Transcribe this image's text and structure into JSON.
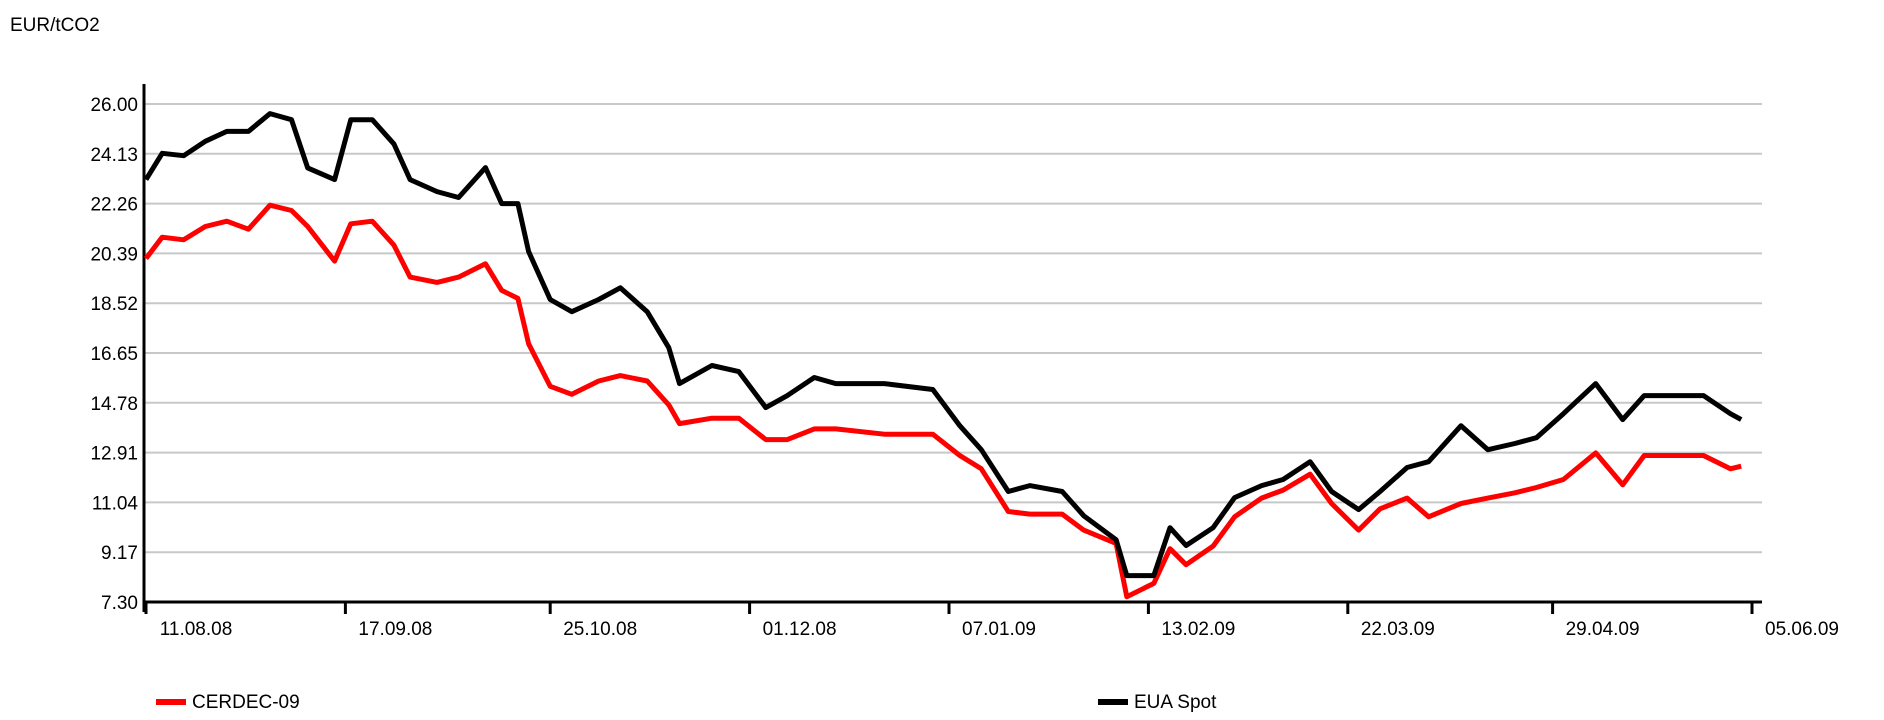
{
  "chart_data": {
    "type": "line",
    "title": "EUR/tCO2",
    "x": [
      "11.08.08",
      "14.08.08",
      "18.08.08",
      "22.08.08",
      "26.08.08",
      "30.08.08",
      "03.09.08",
      "07.09.08",
      "10.09.08",
      "15.09.08",
      "18.09.08",
      "22.09.08",
      "26.09.08",
      "29.09.08",
      "04.10.08",
      "08.10.08",
      "13.10.08",
      "16.10.08",
      "19.10.08",
      "21.10.08",
      "25.10.08",
      "29.10.08",
      "03.11.08",
      "07.11.08",
      "12.11.08",
      "16.11.08",
      "18.11.08",
      "24.11.08",
      "29.11.08",
      "04.12.08",
      "08.12.08",
      "13.12.08",
      "17.12.08",
      "26.12.08",
      "04.01.09",
      "09.01.09",
      "13.01.09",
      "18.01.09",
      "22.01.09",
      "28.01.09",
      "01.02.09",
      "07.02.09",
      "09.02.09",
      "14.02.09",
      "17.02.09",
      "20.02.09",
      "25.02.09",
      "01.03.09",
      "06.03.09",
      "10.03.09",
      "15.03.09",
      "19.03.09",
      "24.03.09",
      "28.03.09",
      "02.04.09",
      "06.04.09",
      "12.04.09",
      "17.04.09",
      "22.04.09",
      "26.04.09",
      "01.05.09",
      "07.05.09",
      "12.05.09",
      "16.05.09",
      "23.05.09",
      "27.05.09",
      "01.06.09",
      "03.06.09"
    ],
    "series": [
      {
        "name": "CERDEC-09",
        "color": "#ff0000",
        "values": [
          20.2,
          21.0,
          20.9,
          21.4,
          21.6,
          21.3,
          22.2,
          22.0,
          21.4,
          20.1,
          21.5,
          21.6,
          20.7,
          19.5,
          19.3,
          19.5,
          20.0,
          19.0,
          18.7,
          17.0,
          15.4,
          15.1,
          15.6,
          15.8,
          15.6,
          14.7,
          14.0,
          14.2,
          14.2,
          13.4,
          13.4,
          13.8,
          13.8,
          13.6,
          13.6,
          12.8,
          12.3,
          10.7,
          10.6,
          10.6,
          10.0,
          9.5,
          7.5,
          8.0,
          9.3,
          8.7,
          9.4,
          10.5,
          11.2,
          11.5,
          12.1,
          11.0,
          10.0,
          10.8,
          11.2,
          10.5,
          11.0,
          11.2,
          11.4,
          11.6,
          11.9,
          12.9,
          11.7,
          12.8,
          12.8,
          12.8,
          12.3,
          12.4
        ]
      },
      {
        "name": "EUA Spot",
        "color": "#000000",
        "values": [
          23.16,
          24.15,
          24.06,
          24.6,
          24.97,
          24.97,
          25.64,
          25.41,
          23.6,
          23.16,
          25.41,
          25.41,
          24.5,
          23.16,
          22.71,
          22.49,
          23.61,
          22.26,
          22.26,
          20.46,
          18.66,
          18.2,
          18.66,
          19.1,
          18.2,
          16.85,
          15.5,
          16.18,
          15.95,
          14.6,
          15.05,
          15.73,
          15.5,
          15.5,
          15.28,
          13.92,
          13.02,
          11.45,
          11.67,
          11.45,
          10.54,
          9.64,
          8.29,
          8.29,
          10.09,
          9.42,
          10.09,
          11.22,
          11.67,
          11.9,
          12.57,
          11.45,
          10.77,
          11.45,
          12.35,
          12.57,
          13.92,
          13.02,
          13.25,
          13.47,
          14.37,
          15.5,
          14.15,
          15.05,
          15.05,
          15.05,
          14.37,
          14.15
        ]
      }
    ],
    "xlim": [
      "11.08.08",
      "05.06.09"
    ],
    "xticks": [
      "11.08.08",
      "17.09.08",
      "25.10.08",
      "01.12.08",
      "07.01.09",
      "13.02.09",
      "22.03.09",
      "29.04.09",
      "05.06.09"
    ],
    "ylim": [
      7.3,
      26.0
    ],
    "yticks": [
      {
        "value": 7.3,
        "label": "7.30"
      },
      9.17,
      11.04,
      12.91,
      14.78,
      16.65,
      18.52,
      20.39,
      22.26,
      24.13,
      {
        "value": 26.0,
        "label": "26.00"
      }
    ],
    "grid": true,
    "legend": "bottom"
  }
}
